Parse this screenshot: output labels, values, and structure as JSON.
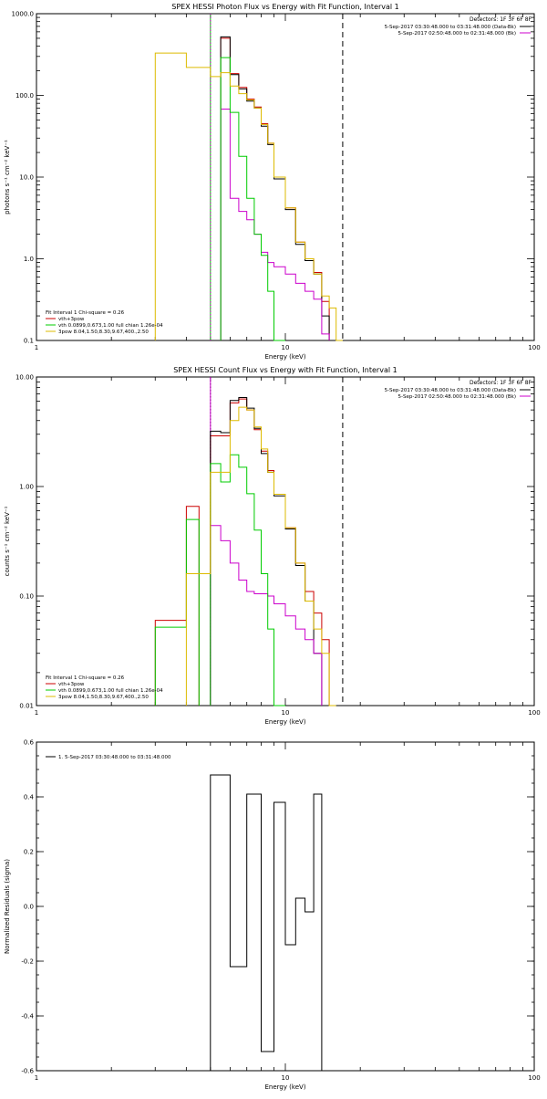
{
  "panels": [
    {
      "title": "SPEX HESSI Photon Flux vs Energy with Fit Function, Interval 1",
      "xlabel": "Energy (keV)",
      "ylabel": "photons s⁻¹ cm⁻² keV⁻¹",
      "header": "Detectors: 1F 3F 6F 8F",
      "legend_right": [
        {
          "text": "5-Sep-2017 03:30:48.000 to 03:31:48.000 (Data-Bk)",
          "color": "#000000"
        },
        {
          "text": "5-Sep-2017 02:50:48.000 to 02:31:48.000 (Bk)",
          "color": "#cc00cc"
        }
      ],
      "legend_left": [
        {
          "text": "Fit Interval 1   Chi-square = 0.26",
          "color": null
        },
        {
          "text": "vth+3pow",
          "color": "#cc0000"
        },
        {
          "text": "vth 0.0899,0.673,1.00  full chian 1.26e-04",
          "color": "#00cc00"
        },
        {
          "text": "3pow 8.04,1.50,8.30,9.67,400.,2.50",
          "color": "#ddbb00"
        }
      ]
    },
    {
      "title": "SPEX HESSI Count Flux vs Energy with Fit Function, Interval 1",
      "xlabel": "Energy (keV)",
      "ylabel": "counts s⁻¹ cm⁻² keV⁻¹",
      "header": "Detectors: 1F 3F 6F 8F",
      "legend_right": [
        {
          "text": "5-Sep-2017 03:30:48.000 to 03:31:48.000 (Data-Bk)",
          "color": "#000000"
        },
        {
          "text": "5-Sep-2017 02:50:48.000 to 02:31:48.000 (Bk)",
          "color": "#cc00cc"
        }
      ],
      "legend_left": [
        {
          "text": "Fit Interval 1   Chi-square = 0.26",
          "color": null
        },
        {
          "text": "vth+3pow",
          "color": "#cc0000"
        },
        {
          "text": "vth 0.0899,0.673,1.00  full chian 1.26e-04",
          "color": "#00cc00"
        },
        {
          "text": "3pow 8.04,1.50,8.30,9.67,400.,2.50",
          "color": "#ddbb00"
        }
      ]
    },
    {
      "title": "",
      "xlabel": "Energy (keV)",
      "ylabel": "Normalized Residuals (sigma)",
      "legend_left": [
        {
          "text": "1.  5-Sep-2017 03:30:48.000 to 03:31:48.000",
          "color": "#000000"
        }
      ]
    }
  ],
  "chart_data": [
    {
      "type": "line",
      "title": "SPEX HESSI Photon Flux vs Energy with Fit Function, Interval 1",
      "xlabel": "Energy (keV)",
      "ylabel": "photons s⁻¹ cm⁻² keV⁻¹",
      "xscale": "log",
      "yscale": "log",
      "xlim": [
        1,
        100
      ],
      "ylim": [
        0.1,
        1000
      ],
      "x_ticks": [
        1,
        10,
        100
      ],
      "x_tick_labels": [
        "1",
        "10",
        "100"
      ],
      "y_ticks": [
        0.1,
        1,
        10,
        100,
        1000
      ],
      "y_tick_labels": [
        "0.1",
        "1.0",
        "10.0",
        "100.0",
        "1000.0"
      ],
      "edges": [
        3.0,
        4.0,
        5.0,
        5.5,
        6.0,
        6.5,
        7.0,
        7.5,
        8.0,
        8.5,
        9.0,
        10.0,
        11.0,
        12.0,
        13.0,
        14.0,
        15.0,
        16.0,
        17.0,
        18.0
      ],
      "series": [
        {
          "name": "vth+3pow",
          "color": "#cc0000",
          "values": [
            null,
            null,
            null,
            500,
            185,
            125,
            90,
            72,
            45,
            26,
            10,
            4.2,
            1.6,
            1.0,
            0.68,
            0.3,
            null,
            null,
            null
          ]
        },
        {
          "name": "Data-Bk",
          "color": "#000000",
          "values": [
            null,
            null,
            null,
            520,
            180,
            120,
            85,
            70,
            42,
            25,
            9.5,
            4.0,
            1.5,
            0.95,
            0.65,
            0.2,
            null,
            null,
            null
          ]
        },
        {
          "name": "Bk",
          "color": "#cc00cc",
          "values": [
            null,
            null,
            null,
            68,
            5.5,
            3.8,
            3.0,
            2.0,
            1.2,
            0.9,
            0.8,
            0.65,
            0.5,
            0.4,
            0.32,
            0.12,
            null,
            null,
            null
          ]
        },
        {
          "name": "vth",
          "color": "#00cc00",
          "values": [
            null,
            null,
            null,
            290,
            62,
            18,
            5.5,
            2.0,
            1.1,
            0.4,
            0.1,
            null,
            null,
            null,
            null,
            null,
            null,
            null,
            null
          ]
        },
        {
          "name": "3pow",
          "color": "#ddbb00",
          "values": [
            330,
            220,
            170,
            190,
            130,
            105,
            88,
            70,
            44,
            26,
            10,
            4.2,
            1.6,
            1.0,
            0.65,
            0.35,
            0.25,
            0.1,
            null
          ]
        }
      ],
      "vlines": [
        {
          "x": 5.0,
          "style": "solid",
          "color": "#00cc00"
        },
        {
          "x": 5.0,
          "style": "dotted",
          "color": "#cc00cc"
        },
        {
          "x": 17.0,
          "style": "dashed",
          "color": "#000000"
        }
      ]
    },
    {
      "type": "line",
      "title": "SPEX HESSI Count Flux vs Energy with Fit Function, Interval 1",
      "xlabel": "Energy (keV)",
      "ylabel": "counts s⁻¹ cm⁻² keV⁻¹",
      "xscale": "log",
      "yscale": "log",
      "xlim": [
        1,
        100
      ],
      "ylim": [
        0.01,
        10
      ],
      "x_ticks": [
        1,
        10,
        100
      ],
      "x_tick_labels": [
        "1",
        "10",
        "100"
      ],
      "y_ticks": [
        0.01,
        0.1,
        1,
        10
      ],
      "y_tick_labels": [
        "0.01",
        "0.10",
        "1.00",
        "10.00"
      ],
      "edges": [
        3.0,
        4.0,
        4.5,
        5.0,
        5.5,
        6.0,
        6.5,
        7.0,
        7.5,
        8.0,
        8.5,
        9.0,
        10.0,
        11.0,
        12.0,
        13.0,
        14.0,
        15.0,
        16.0,
        17.0,
        18.0
      ],
      "series": [
        {
          "name": "vth+3pow",
          "color": "#cc0000",
          "values": [
            0.06,
            0.66,
            null,
            2.9,
            2.9,
            5.8,
            6.3,
            5.0,
            3.3,
            2.1,
            1.4,
            0.85,
            0.42,
            0.2,
            0.11,
            0.07,
            0.04,
            null,
            null,
            null
          ]
        },
        {
          "name": "Data-Bk",
          "color": "#000000",
          "values": [
            null,
            null,
            null,
            3.2,
            3.1,
            6.1,
            6.5,
            5.2,
            3.4,
            2.0,
            1.35,
            0.82,
            0.41,
            0.19,
            0.09,
            0.03,
            0.01,
            null,
            null,
            null
          ]
        },
        {
          "name": "Bk",
          "color": "#cc00cc",
          "values": [
            null,
            null,
            null,
            0.44,
            0.32,
            0.2,
            0.14,
            0.11,
            0.105,
            0.105,
            0.1,
            0.085,
            0.066,
            0.05,
            0.04,
            0.03,
            null,
            null,
            null,
            null
          ]
        },
        {
          "name": "vth",
          "color": "#00cc00",
          "values": [
            0.052,
            0.5,
            null,
            1.62,
            1.1,
            1.95,
            1.5,
            0.86,
            0.4,
            0.16,
            0.05,
            0.01,
            null,
            null,
            null,
            null,
            null,
            null,
            null,
            null
          ]
        },
        {
          "name": "3pow",
          "color": "#ddbb00",
          "values": [
            null,
            0.16,
            0.16,
            1.35,
            1.35,
            4.0,
            5.3,
            5.0,
            3.5,
            2.2,
            1.35,
            0.85,
            0.42,
            0.2,
            0.09,
            0.05,
            0.03,
            0.01,
            null,
            null
          ]
        }
      ],
      "vlines": [
        {
          "x": 5.0,
          "style": "dotted",
          "color": "#000000"
        },
        {
          "x": 5.0,
          "style": "solid",
          "color": "#cc00cc"
        },
        {
          "x": 17.0,
          "style": "dashed",
          "color": "#000000"
        }
      ]
    },
    {
      "type": "line",
      "title": "",
      "xlabel": "Energy (keV)",
      "ylabel": "Normalized Residuals (sigma)",
      "xscale": "log",
      "yscale": "linear",
      "xlim": [
        1,
        100
      ],
      "ylim": [
        -0.6,
        0.6
      ],
      "x_ticks": [
        1,
        10,
        100
      ],
      "x_tick_labels": [
        "1",
        "10",
        "100"
      ],
      "y_ticks": [
        -0.6,
        -0.4,
        -0.2,
        0.0,
        0.2,
        0.4,
        0.6
      ],
      "y_tick_labels": [
        "-0.6",
        "-0.4",
        "-0.2",
        "0.0",
        "0.2",
        "0.4",
        "0.6"
      ],
      "edges": [
        5.0,
        6.0,
        7.0,
        8.0,
        9.0,
        10.0,
        11.0,
        12.0,
        13.0,
        14.0,
        15.0,
        16.0
      ],
      "series": [
        {
          "name": "1.  5-Sep-2017 03:30:48.000 to 03:31:48.000",
          "color": "#000000",
          "values": [
            0.48,
            -0.22,
            0.41,
            -0.53,
            0.38,
            -0.14,
            0.03,
            -0.02,
            0.41,
            -0.6,
            null
          ]
        }
      ],
      "vlines": []
    }
  ]
}
